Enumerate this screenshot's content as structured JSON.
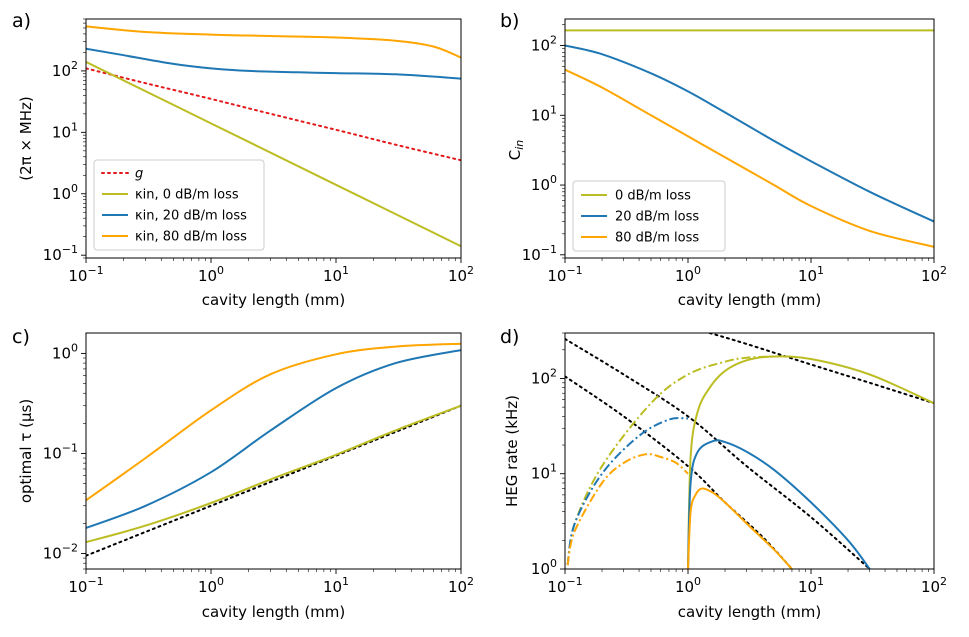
{
  "colors": {
    "kappa_0": "#bcbd22",
    "kappa_20": "#1f77b4",
    "kappa_80": "#ffa500",
    "g": "#e31a1c",
    "bound": "#000000"
  },
  "chart_data": [
    {
      "panel": "a)",
      "type": "line",
      "log_x": true,
      "log_y": true,
      "xlim": [
        0.1,
        100
      ],
      "ylim": [
        0.09,
        700
      ],
      "xlabel": "cavity length (mm)",
      "ylabel": "(2π × MHz)",
      "legend": "lower-left",
      "series": [
        {
          "name": "g",
          "legend_label": "g",
          "style": "dotted",
          "color_key": "g",
          "x": [
            0.1,
            0.3,
            1,
            3,
            10,
            30,
            100
          ],
          "y": [
            110,
            63,
            35,
            20,
            11,
            6.3,
            3.5
          ]
        },
        {
          "name": "kappa_in_0",
          "legend_label": "κin, 0 dB/m loss",
          "style": "solid",
          "color_key": "kappa_0",
          "x": [
            0.1,
            1,
            10,
            100
          ],
          "y": [
            140,
            14,
            1.4,
            0.14
          ]
        },
        {
          "name": "kappa_in_20",
          "legend_label": "κin, 20 dB/m loss",
          "style": "solid",
          "color_key": "kappa_20",
          "x": [
            0.1,
            0.2,
            0.5,
            1,
            2,
            5,
            10,
            30,
            100
          ],
          "y": [
            230,
            180,
            130,
            110,
            100,
            95,
            92,
            88,
            75
          ]
        },
        {
          "name": "kappa_in_80",
          "legend_label": "κin, 80 dB/m loss",
          "style": "solid",
          "color_key": "kappa_80",
          "x": [
            0.1,
            0.3,
            1,
            3,
            10,
            30,
            60,
            100
          ],
          "y": [
            530,
            430,
            390,
            370,
            350,
            310,
            250,
            165
          ]
        }
      ]
    },
    {
      "panel": "b)",
      "type": "line",
      "log_x": true,
      "log_y": true,
      "xlim": [
        0.1,
        100
      ],
      "ylim": [
        0.09,
        240
      ],
      "xlabel": "cavity length (mm)",
      "ylabel": "Cin",
      "legend": "lower-left",
      "series": [
        {
          "name": "C_0",
          "legend_label": "0 dB/m loss",
          "style": "solid",
          "color_key": "kappa_0",
          "x": [
            0.1,
            100
          ],
          "y": [
            165,
            165
          ]
        },
        {
          "name": "C_20",
          "legend_label": "20 dB/m loss",
          "style": "solid",
          "color_key": "kappa_20",
          "x": [
            0.1,
            0.2,
            0.5,
            1,
            2,
            5,
            10,
            30,
            100
          ],
          "y": [
            100,
            75,
            40,
            22,
            11,
            4.3,
            2.2,
            0.8,
            0.3
          ]
        },
        {
          "name": "C_80",
          "legend_label": "80 dB/m loss",
          "style": "solid",
          "color_key": "kappa_80",
          "x": [
            0.1,
            0.2,
            0.5,
            1,
            2,
            5,
            10,
            30,
            100
          ],
          "y": [
            45,
            25,
            10,
            5,
            2.5,
            1.0,
            0.5,
            0.22,
            0.13
          ]
        }
      ]
    },
    {
      "panel": "c)",
      "type": "line",
      "log_x": true,
      "log_y": true,
      "xlim": [
        0.1,
        100
      ],
      "ylim": [
        0.007,
        1.6
      ],
      "xlabel": "cavity length (mm)",
      "ylabel": "optimal τ (μs)",
      "series": [
        {
          "name": "tau_bound",
          "style": "dotted",
          "color_key": "bound",
          "x": [
            0.1,
            1,
            10,
            100
          ],
          "y": [
            0.0095,
            0.03,
            0.095,
            0.3
          ]
        },
        {
          "name": "tau_0",
          "style": "solid",
          "color_key": "kappa_0",
          "x": [
            0.1,
            0.3,
            1,
            3,
            10,
            30,
            100
          ],
          "y": [
            0.013,
            0.019,
            0.032,
            0.055,
            0.097,
            0.17,
            0.3
          ]
        },
        {
          "name": "tau_20",
          "style": "solid",
          "color_key": "kappa_20",
          "x": [
            0.1,
            0.3,
            1,
            3,
            10,
            30,
            100
          ],
          "y": [
            0.018,
            0.03,
            0.065,
            0.17,
            0.45,
            0.8,
            1.08
          ]
        },
        {
          "name": "tau_80",
          "style": "solid",
          "color_key": "kappa_80",
          "x": [
            0.1,
            0.3,
            1,
            3,
            10,
            30,
            100
          ],
          "y": [
            0.034,
            0.09,
            0.27,
            0.62,
            0.98,
            1.17,
            1.25
          ]
        }
      ]
    },
    {
      "panel": "d)",
      "type": "line",
      "log_x": true,
      "log_y": true,
      "xlim": [
        0.1,
        100
      ],
      "ylim": [
        1,
        300
      ],
      "xlabel": "cavity length (mm)",
      "ylabel": "HEG rate (kHz)",
      "series": [
        {
          "name": "bound_upper",
          "style": "dotted",
          "color_key": "bound",
          "x": [
            1.5,
            3,
            10,
            30,
            100
          ],
          "y": [
            300,
            230,
            140,
            90,
            55
          ]
        },
        {
          "name": "bound_mid",
          "style": "dotted",
          "color_key": "bound",
          "x": [
            0.1,
            0.3,
            1,
            3,
            10,
            30
          ],
          "y": [
            260,
            110,
            40,
            12,
            3.5,
            1.0
          ]
        },
        {
          "name": "bound_lower",
          "style": "dotted",
          "color_key": "bound",
          "x": [
            0.1,
            0.3,
            1,
            2,
            4,
            7
          ],
          "y": [
            105,
            40,
            12,
            5,
            2.2,
            1.0
          ]
        },
        {
          "name": "rate_0_dashdot",
          "style": "dashdot",
          "color_key": "kappa_0",
          "x": [
            0.105,
            0.12,
            0.2,
            0.5,
            1,
            2,
            3,
            5
          ],
          "y": [
            1.1,
            3,
            12,
            55,
            110,
            150,
            165,
            170
          ]
        },
        {
          "name": "rate_0",
          "style": "solid",
          "color_key": "kappa_0",
          "x": [
            1.0,
            1.05,
            1.2,
            1.5,
            2,
            3,
            5,
            10,
            30,
            100
          ],
          "y": [
            1.0,
            15,
            45,
            80,
            120,
            155,
            170,
            160,
            110,
            55
          ]
        },
        {
          "name": "rate_20_dashdot",
          "style": "dashdot",
          "color_key": "kappa_20",
          "x": [
            0.105,
            0.12,
            0.2,
            0.4,
            0.7,
            1
          ],
          "y": [
            1.1,
            3,
            10,
            25,
            37,
            38
          ]
        },
        {
          "name": "rate_20",
          "style": "solid",
          "color_key": "kappa_20",
          "x": [
            1.0,
            1.05,
            1.2,
            1.6,
            2,
            3,
            5,
            10,
            20,
            30
          ],
          "y": [
            1.0,
            8,
            17,
            22,
            21.5,
            17,
            11,
            5,
            2,
            1.0
          ]
        },
        {
          "name": "rate_80_dashdot",
          "style": "dashdot",
          "color_key": "kappa_80",
          "x": [
            0.105,
            0.12,
            0.2,
            0.3,
            0.45,
            0.6,
            0.8,
            1
          ],
          "y": [
            1.1,
            2.5,
            8,
            13,
            16,
            15,
            13,
            10
          ]
        },
        {
          "name": "rate_80",
          "style": "solid",
          "color_key": "kappa_80",
          "x": [
            1.0,
            1.05,
            1.15,
            1.3,
            1.6,
            2,
            3,
            5,
            7
          ],
          "y": [
            1.0,
            4,
            6,
            7,
            6.3,
            5,
            3,
            1.6,
            1.0
          ]
        }
      ]
    }
  ]
}
